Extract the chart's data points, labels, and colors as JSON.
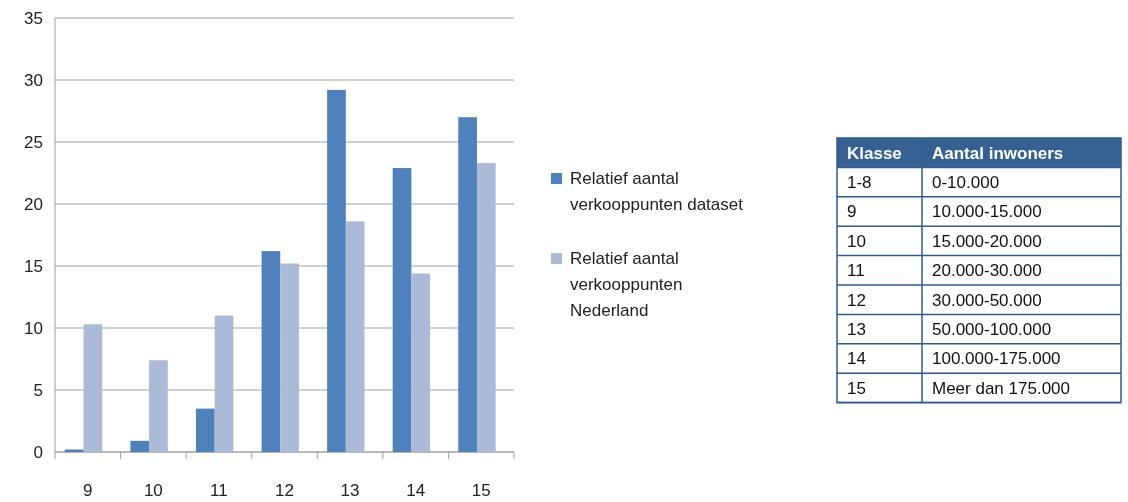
{
  "chart_data": {
    "type": "bar",
    "categories": [
      "9",
      "10",
      "11",
      "12",
      "13",
      "14",
      "15"
    ],
    "ylim": [
      0,
      35
    ],
    "yticks": [
      0,
      5,
      10,
      15,
      20,
      25,
      30,
      35
    ],
    "grid": "y",
    "legend": "right",
    "series": [
      {
        "name": "Relatief aantal verkooppunten dataset",
        "color": "#4f81bd",
        "values": [
          0.2,
          0.9,
          3.5,
          16.2,
          29.2,
          22.9,
          27.0
        ]
      },
      {
        "name": "Relatief aantal verkooppunten Nederland",
        "color": "#aabad7",
        "values": [
          10.3,
          7.4,
          11.0,
          15.2,
          18.6,
          14.4,
          23.3
        ]
      }
    ],
    "annotations": [
      "Klasse",
      "Aantal inwoners",
      "1-8",
      "0-10.000",
      "9",
      "10.000-15.000",
      "10",
      "15.000-20.000",
      "11",
      "20.000-30.000",
      "12",
      "30.000-50.000",
      "13",
      "50.000-100.000",
      "14",
      "100.000-175.000",
      "15",
      "Meer dan 175.000"
    ]
  }
}
